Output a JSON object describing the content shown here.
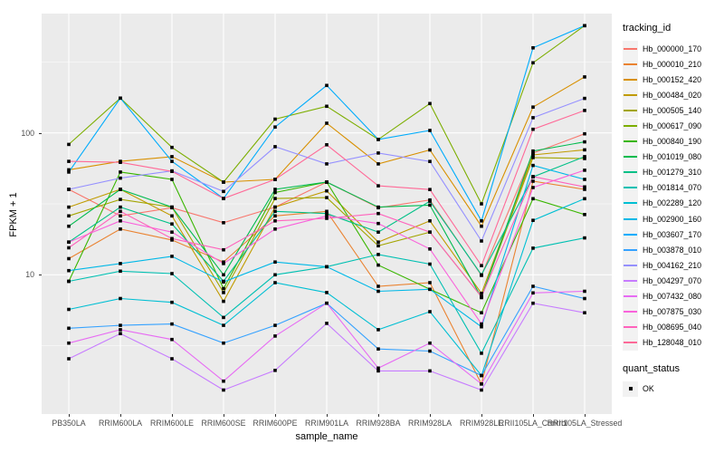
{
  "figure": {
    "background": "#FFFFFF",
    "panel_background": "#EBEBEB",
    "gridline_color": "#FFFFFF",
    "tick_label_color": "#4D4D4D",
    "marker_color": "#000000"
  },
  "axes": {
    "x": {
      "title": "sample_name"
    },
    "y": {
      "title": "FPKM + 1",
      "scale": "log10",
      "ticks": [
        {
          "label": "100",
          "value": 100
        },
        {
          "label": "10",
          "value": 10
        }
      ]
    }
  },
  "legend": {
    "tracking_title": "tracking_id",
    "quant_title": "quant_status",
    "quant_items": [
      {
        "label": "OK",
        "marker": "black-square"
      }
    ]
  },
  "chart_data": {
    "type": "line",
    "title": "",
    "xlabel": "sample_name",
    "ylabel": "FPKM + 1",
    "yscale": "log10",
    "ylim": [
      1.04,
      694
    ],
    "grid": {
      "major_y": [
        10,
        100
      ],
      "minor_y": [
        3.162,
        31.62,
        316.2
      ],
      "vertical_major": true
    },
    "legend_position": "right",
    "marker": "square",
    "categories": [
      "PB350LA",
      "RRIM600LA",
      "RRIM600LE",
      "RRIM600SE",
      "RRIM600PE",
      "RRIM901LA",
      "RRIM928BA",
      "RRIM928LA",
      "RRIM928LE",
      "RRII105LA_Control",
      "RRII105LA_Stressed"
    ],
    "series": [
      {
        "name": "Hb_000000_170",
        "color": "#F8766D",
        "values": [
          40,
          26,
          29.7,
          23.3,
          30,
          45,
          29.7,
          33.7,
          9.9,
          72,
          98.6
        ]
      },
      {
        "name": "Hb_000010_210",
        "color": "#EA8331",
        "values": [
          13,
          21,
          17.6,
          12.3,
          26,
          28,
          8.3,
          8.8,
          1.7,
          45.7,
          40
        ]
      },
      {
        "name": "Hb_000152_420",
        "color": "#D89000",
        "values": [
          55,
          63,
          68,
          45,
          47,
          117,
          60.5,
          75.8,
          22,
          152,
          248
        ]
      },
      {
        "name": "Hb_000484_020",
        "color": "#C09B00",
        "values": [
          30,
          40,
          26,
          6.5,
          30,
          39,
          17,
          24,
          7.4,
          70,
          76
        ]
      },
      {
        "name": "Hb_000505_140",
        "color": "#A3A500",
        "values": [
          26,
          34,
          30,
          7.5,
          34.5,
          35,
          16,
          20,
          7,
          67,
          66
        ]
      },
      {
        "name": "Hb_000617_090",
        "color": "#7CAE00",
        "values": [
          83,
          176,
          79,
          45,
          125,
          154,
          90,
          161,
          31.6,
          312,
          570
        ]
      },
      {
        "name": "Hb_000840_190",
        "color": "#39B600",
        "values": [
          9,
          53,
          47,
          8,
          38,
          45,
          11.7,
          7.9,
          5.4,
          34.4,
          26.6
        ]
      },
      {
        "name": "Hb_001019_080",
        "color": "#00BB4E",
        "values": [
          22,
          40,
          30,
          10,
          40,
          45,
          30,
          31,
          6.9,
          74.5,
          86.4
        ]
      },
      {
        "name": "Hb_001279_310",
        "color": "#00C087",
        "values": [
          17,
          30,
          22.8,
          9,
          28,
          27,
          20,
          33,
          10,
          49,
          68
        ]
      },
      {
        "name": "Hb_001814_070",
        "color": "#00C0B2",
        "values": [
          9,
          10.6,
          10.2,
          5,
          10,
          11.4,
          13.9,
          11.9,
          2.8,
          15.4,
          18.2
        ]
      },
      {
        "name": "Hb_002289_120",
        "color": "#00BFD3",
        "values": [
          5.7,
          6.8,
          6.4,
          4.4,
          8.8,
          7.5,
          4.1,
          5.5,
          1.95,
          24.2,
          34.4
        ]
      },
      {
        "name": "Hb_002900_160",
        "color": "#00B8E7",
        "values": [
          10.7,
          12,
          13.5,
          8.9,
          12.3,
          11.4,
          7.65,
          7.9,
          4.3,
          59,
          47
        ]
      },
      {
        "name": "Hb_003607_170",
        "color": "#00ACFC",
        "values": [
          53,
          176,
          63,
          34.5,
          110,
          216,
          90,
          104,
          24,
          398,
          570
        ]
      },
      {
        "name": "Hb_003878_010",
        "color": "#35A2FF",
        "values": [
          4.2,
          4.4,
          4.5,
          3.3,
          4.4,
          6.3,
          3,
          2.9,
          1.95,
          8.3,
          6.8
        ]
      },
      {
        "name": "Hb_004162_210",
        "color": "#9590FF",
        "values": [
          40,
          48,
          54,
          38.7,
          80,
          60.5,
          72.2,
          62.9,
          17.3,
          128,
          175
        ]
      },
      {
        "name": "Hb_004297_070",
        "color": "#C77CFF",
        "values": [
          2.56,
          3.85,
          2.56,
          1.54,
          2.12,
          4.55,
          2.1,
          2.1,
          1.54,
          6.3,
          5.4
        ]
      },
      {
        "name": "Hb_007432_080",
        "color": "#E76BF3",
        "values": [
          3.3,
          4.1,
          3.5,
          1.78,
          3.7,
          6.3,
          2.2,
          3.3,
          1.7,
          7.45,
          7.65
        ]
      },
      {
        "name": "Hb_007875_030",
        "color": "#FA62DB",
        "values": [
          17,
          24,
          20,
          12,
          21,
          26,
          23,
          15.2,
          4.5,
          41.2,
          54.6
        ]
      },
      {
        "name": "Hb_008695_040",
        "color": "#FF62BC",
        "values": [
          15.5,
          28,
          18,
          15,
          24,
          25,
          27,
          20,
          7,
          49.2,
          41.6
        ]
      },
      {
        "name": "Hb_128048_010",
        "color": "#FF6A98",
        "values": [
          63,
          62,
          53.5,
          34.5,
          47,
          82.5,
          42.4,
          39.9,
          11.6,
          106,
          144
        ]
      }
    ]
  }
}
